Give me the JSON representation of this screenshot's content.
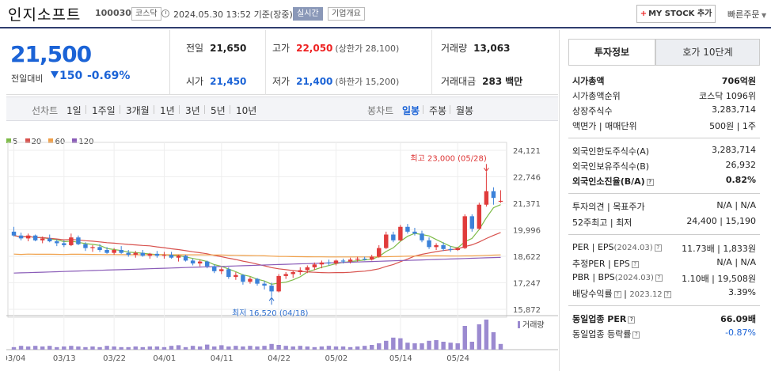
{
  "header": {
    "name": "인지소프트",
    "code": "100030",
    "market": "코스닥",
    "datetime": "2024.05.30 13:52 기준(장중)",
    "realtime": "실시간",
    "overview": "기업개요",
    "mystock": "MY STOCK 추가",
    "quick_order": "빠른주문"
  },
  "price": {
    "current": "21,500",
    "change_label": "전일대비",
    "change": "150",
    "change_pct": "-0.69%"
  },
  "summary": {
    "prev_close_label": "전일",
    "prev_close": "21,650",
    "high_label": "고가",
    "high": "22,050",
    "upper_limit": "(상한가 28,100)",
    "volume_label": "거래량",
    "volume": "13,063",
    "open_label": "시가",
    "open": "21,450",
    "low_label": "저가",
    "low": "21,400",
    "lower_limit": "(하한가 15,200)",
    "amount_label": "거래대금",
    "amount": "283",
    "amount_unit": "백만"
  },
  "tabs": {
    "line": "선차트",
    "d1": "1일",
    "w1": "1주일",
    "m3": "3개월",
    "y1": "1년",
    "y3": "3년",
    "y5": "5년",
    "y10": "10년",
    "candle": "봉차트",
    "daily": "일봉",
    "weekly": "주봉",
    "monthly": "월봉"
  },
  "legend": {
    "ma5": "5",
    "ma20": "20",
    "ma60": "60",
    "ma120": "120",
    "ma5_color": "#7dbb47",
    "ma20_color": "#d8524e",
    "ma60_color": "#f0a04a",
    "ma120_color": "#8a5cb8"
  },
  "chart_data": {
    "type": "candlestick",
    "y_ticks": [
      "24,121",
      "22,746",
      "21,371",
      "19,996",
      "18,622",
      "17,247",
      "15,872"
    ],
    "ylim": [
      15872,
      24121
    ],
    "x_ticks": [
      "03/04",
      "03/13",
      "03/22",
      "04/01",
      "04/11",
      "04/22",
      "05/02",
      "05/14",
      "05/24"
    ],
    "annotation_high": "최고 23,000 (05/28)",
    "annotation_low": "최저 16,520 (04/18)",
    "volume_label": "거래량",
    "up_color": "#e03b3b",
    "down_color": "#3c82d9",
    "volume_color": "#9b8ad0",
    "ma_colors": {
      "ma5": "#7dbb47",
      "ma20": "#d8524e",
      "ma60": "#f0a04a",
      "ma120": "#8a5cb8"
    },
    "candles": [
      {
        "o": 19900,
        "h": 20150,
        "l": 19650,
        "c": 19700
      },
      {
        "o": 19700,
        "h": 19850,
        "l": 19450,
        "c": 19550
      },
      {
        "o": 19550,
        "h": 19800,
        "l": 19400,
        "c": 19700
      },
      {
        "o": 19700,
        "h": 19750,
        "l": 19400,
        "c": 19450
      },
      {
        "o": 19450,
        "h": 19650,
        "l": 19300,
        "c": 19550
      },
      {
        "o": 19550,
        "h": 19750,
        "l": 19350,
        "c": 19400
      },
      {
        "o": 19400,
        "h": 19500,
        "l": 19150,
        "c": 19300
      },
      {
        "o": 19300,
        "h": 19450,
        "l": 19100,
        "c": 19200
      },
      {
        "o": 19200,
        "h": 19800,
        "l": 19150,
        "c": 19600
      },
      {
        "o": 19600,
        "h": 19700,
        "l": 19200,
        "c": 19250
      },
      {
        "o": 19250,
        "h": 19350,
        "l": 18900,
        "c": 19050
      },
      {
        "o": 19050,
        "h": 19200,
        "l": 18850,
        "c": 19100
      },
      {
        "o": 19100,
        "h": 19250,
        "l": 18850,
        "c": 18950
      },
      {
        "o": 18950,
        "h": 19100,
        "l": 18750,
        "c": 18800
      },
      {
        "o": 18800,
        "h": 19050,
        "l": 18700,
        "c": 18950
      },
      {
        "o": 18950,
        "h": 19150,
        "l": 18750,
        "c": 18800
      },
      {
        "o": 18800,
        "h": 18950,
        "l": 18600,
        "c": 18700
      },
      {
        "o": 18700,
        "h": 18900,
        "l": 18550,
        "c": 18800
      },
      {
        "o": 18800,
        "h": 18950,
        "l": 18600,
        "c": 18650
      },
      {
        "o": 18650,
        "h": 18800,
        "l": 18500,
        "c": 18750
      },
      {
        "o": 18750,
        "h": 18900,
        "l": 18550,
        "c": 18650
      },
      {
        "o": 18650,
        "h": 18850,
        "l": 18500,
        "c": 18700
      },
      {
        "o": 18700,
        "h": 18850,
        "l": 18500,
        "c": 18550
      },
      {
        "o": 18550,
        "h": 18700,
        "l": 18350,
        "c": 18650
      },
      {
        "o": 18650,
        "h": 18700,
        "l": 18350,
        "c": 18400
      },
      {
        "o": 18400,
        "h": 18500,
        "l": 18150,
        "c": 18250
      },
      {
        "o": 18250,
        "h": 18450,
        "l": 18100,
        "c": 18350
      },
      {
        "o": 18350,
        "h": 18400,
        "l": 18000,
        "c": 18100
      },
      {
        "o": 18100,
        "h": 18200,
        "l": 17750,
        "c": 17850
      },
      {
        "o": 17850,
        "h": 18050,
        "l": 17700,
        "c": 17950
      },
      {
        "o": 17950,
        "h": 18050,
        "l": 17450,
        "c": 17550
      },
      {
        "o": 17550,
        "h": 17800,
        "l": 17400,
        "c": 17650
      },
      {
        "o": 17650,
        "h": 17700,
        "l": 17150,
        "c": 17300
      },
      {
        "o": 17300,
        "h": 17550,
        "l": 17200,
        "c": 17450
      },
      {
        "o": 17450,
        "h": 17500,
        "l": 17100,
        "c": 17200
      },
      {
        "o": 17200,
        "h": 17350,
        "l": 16900,
        "c": 17100
      },
      {
        "o": 17100,
        "h": 17250,
        "l": 16520,
        "c": 16800
      },
      {
        "o": 16800,
        "h": 17700,
        "l": 16750,
        "c": 17600
      },
      {
        "o": 17600,
        "h": 17800,
        "l": 17450,
        "c": 17700
      },
      {
        "o": 17700,
        "h": 17900,
        "l": 17500,
        "c": 17800
      },
      {
        "o": 17800,
        "h": 18050,
        "l": 17650,
        "c": 17900
      },
      {
        "o": 17900,
        "h": 18150,
        "l": 17750,
        "c": 18050
      },
      {
        "o": 18050,
        "h": 18300,
        "l": 17900,
        "c": 18200
      },
      {
        "o": 18200,
        "h": 18400,
        "l": 18000,
        "c": 18300
      },
      {
        "o": 18300,
        "h": 18450,
        "l": 18150,
        "c": 18250
      },
      {
        "o": 18250,
        "h": 18450,
        "l": 18150,
        "c": 18400
      },
      {
        "o": 18400,
        "h": 18500,
        "l": 18250,
        "c": 18350
      },
      {
        "o": 18350,
        "h": 18550,
        "l": 18250,
        "c": 18450
      },
      {
        "o": 18450,
        "h": 18600,
        "l": 18350,
        "c": 18500
      },
      {
        "o": 18500,
        "h": 18600,
        "l": 18400,
        "c": 18450
      },
      {
        "o": 18450,
        "h": 18700,
        "l": 18400,
        "c": 18600
      },
      {
        "o": 18600,
        "h": 19200,
        "l": 18550,
        "c": 19050
      },
      {
        "o": 19050,
        "h": 19900,
        "l": 19000,
        "c": 19750
      },
      {
        "o": 19750,
        "h": 19900,
        "l": 19350,
        "c": 19450
      },
      {
        "o": 19450,
        "h": 20250,
        "l": 19400,
        "c": 20150
      },
      {
        "o": 20150,
        "h": 20300,
        "l": 19800,
        "c": 19900
      },
      {
        "o": 19900,
        "h": 20100,
        "l": 19700,
        "c": 19800
      },
      {
        "o": 19800,
        "h": 19950,
        "l": 19350,
        "c": 19450
      },
      {
        "o": 19450,
        "h": 19600,
        "l": 19000,
        "c": 19100
      },
      {
        "o": 19100,
        "h": 19300,
        "l": 18950,
        "c": 19200
      },
      {
        "o": 19200,
        "h": 19350,
        "l": 18900,
        "c": 19000
      },
      {
        "o": 19000,
        "h": 19150,
        "l": 18850,
        "c": 18950
      },
      {
        "o": 18950,
        "h": 19100,
        "l": 18900,
        "c": 19050
      },
      {
        "o": 19050,
        "h": 20800,
        "l": 19000,
        "c": 20700
      },
      {
        "o": 20700,
        "h": 20800,
        "l": 19900,
        "c": 20050
      },
      {
        "o": 20050,
        "h": 21400,
        "l": 20000,
        "c": 21300
      },
      {
        "o": 21300,
        "h": 23000,
        "l": 21200,
        "c": 22000
      },
      {
        "o": 22000,
        "h": 22200,
        "l": 21300,
        "c": 21650
      },
      {
        "o": 21450,
        "h": 22050,
        "l": 21400,
        "c": 21500
      }
    ],
    "volumes": [
      0.08,
      0.12,
      0.1,
      0.12,
      0.1,
      0.12,
      0.08,
      0.1,
      0.12,
      0.1,
      0.08,
      0.1,
      0.08,
      0.12,
      0.1,
      0.08,
      0.08,
      0.1,
      0.08,
      0.1,
      0.1,
      0.08,
      0.12,
      0.14,
      0.08,
      0.12,
      0.1,
      0.16,
      0.1,
      0.14,
      0.1,
      0.12,
      0.1,
      0.12,
      0.1,
      0.12,
      0.18,
      0.15,
      0.12,
      0.1,
      0.12,
      0.1,
      0.08,
      0.1,
      0.12,
      0.1,
      0.1,
      0.08,
      0.1,
      0.12,
      0.15,
      0.2,
      0.28,
      0.38,
      0.36,
      0.22,
      0.2,
      0.2,
      0.28,
      0.3,
      0.25,
      0.22,
      0.2,
      0.75,
      0.25,
      0.8,
      0.95,
      0.55,
      0.18
    ]
  },
  "right": {
    "tab_info": "투자정보",
    "tab_orderbook": "호가 10단계",
    "mcap_label": "시가총액",
    "mcap": "706억원",
    "mcap_rank_label": "시가총액순위",
    "mcap_rank": "코스닥 1096위",
    "shares_label": "상장주식수",
    "shares": "3,283,714",
    "par_label": "액면가",
    "unit_label": "매매단위",
    "par_unit": "500원  |  1주",
    "foreign_limit_label": "외국인한도주식수(A)",
    "foreign_limit": "3,283,714",
    "foreign_hold_label": "외국인보유주식수(B)",
    "foreign_hold": "26,932",
    "foreign_ratio_label": "외국인소진율(B/A)",
    "foreign_ratio": "0.82%",
    "opinion_label": "투자의견",
    "target_label": "목표주가",
    "opinion_target": "N/A  |  N/A",
    "w52_high_label": "52주최고",
    "w52_low_label": "최저",
    "w52": "24,400  |  15,190",
    "per_label": "PER",
    "eps_label": "EPS",
    "per_eps_period": "(2024.03)",
    "per_eps": "11.73배  |  1,833원",
    "est_per_label": "추정PER",
    "est_eps_label": "EPS",
    "est_per_eps": "N/A  |  N/A",
    "pbr_label": "PBR",
    "bps_label": "BPS",
    "pbr_bps_period": "(2024.03)",
    "pbr_bps": "1.10배  |  19,508원",
    "dividend_label": "배당수익률",
    "dividend_period": "2023.12",
    "dividend": "3.39%",
    "ind_per_label": "동일업종 PER",
    "ind_per": "66.09배",
    "ind_chg_label": "동일업종 등락률",
    "ind_chg": "-0.87%"
  }
}
